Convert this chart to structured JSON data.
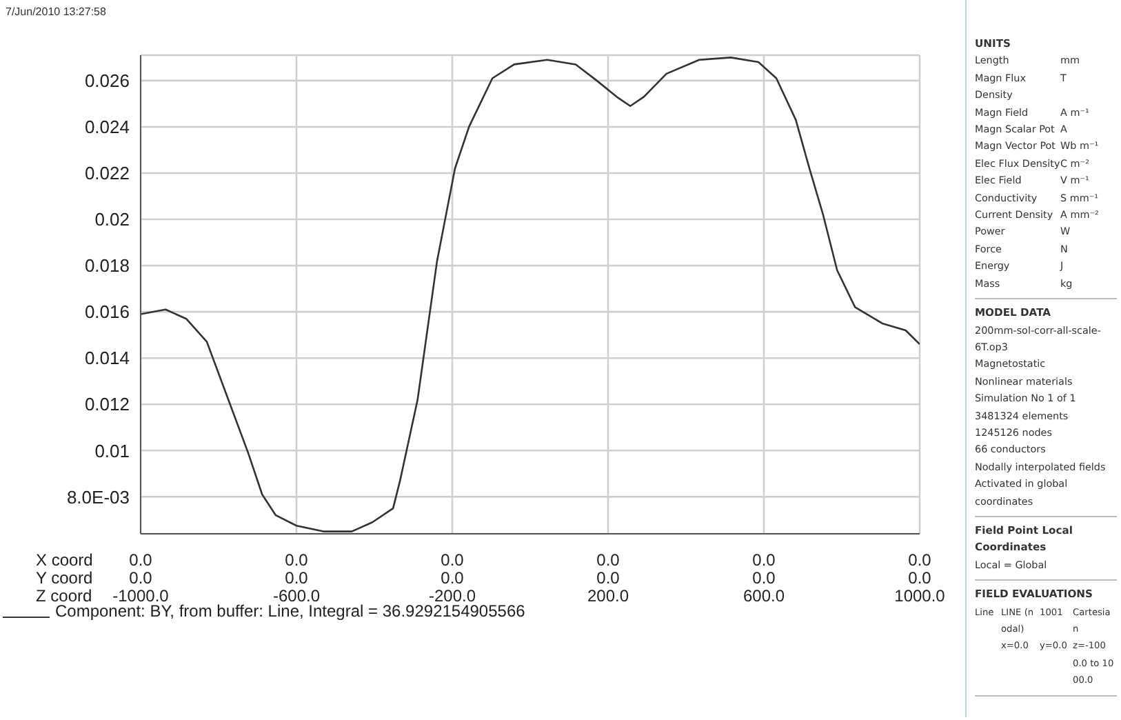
{
  "chart_data": {
    "type": "line",
    "x": [
      -1000,
      -936,
      -883,
      -830,
      -777,
      -724,
      -688,
      -653,
      -600,
      -529,
      -458,
      -405,
      -352,
      -334,
      -289,
      -239,
      -193,
      -157,
      -97,
      -41,
      44,
      117,
      171,
      222,
      257,
      292,
      350,
      434,
      515,
      586,
      632,
      682,
      717,
      752,
      788,
      834,
      904,
      964,
      1000
    ],
    "series": [
      {
        "name": "Component: BY, from buffer: Line, Integral = 36.9292154905566",
        "color": "#333333",
        "values": [
          0.0159,
          0.0161,
          0.0157,
          0.0147,
          0.0123,
          0.0099,
          0.0081,
          0.0072,
          0.00675,
          0.0065,
          0.0065,
          0.0069,
          0.0075,
          0.0087,
          0.0122,
          0.0182,
          0.0222,
          0.024,
          0.0261,
          0.0267,
          0.0269,
          0.0267,
          0.026,
          0.0253,
          0.0249,
          0.0253,
          0.0263,
          0.0269,
          0.027,
          0.0268,
          0.0261,
          0.0243,
          0.0222,
          0.0202,
          0.0178,
          0.0162,
          0.0155,
          0.0152,
          0.0146
        ]
      }
    ],
    "xlim": [
      -1000,
      1000
    ],
    "xticks": [
      {
        "value": -1000,
        "label": "-1000.0"
      },
      {
        "value": -600,
        "label": "-600.0"
      },
      {
        "value": -200,
        "label": "-200.0"
      },
      {
        "value": 200,
        "label": "200.0"
      },
      {
        "value": 600,
        "label": "600.0"
      },
      {
        "value": 1000,
        "label": "1000.0"
      }
    ],
    "ylim": [
      0.0064,
      0.0271
    ],
    "yticks": [
      {
        "value": 0.008,
        "label": "8.0E-03"
      },
      0.01,
      0.012,
      0.014,
      0.016,
      0.018,
      0.02,
      0.022,
      0.024,
      0.026
    ],
    "grid": true,
    "legend": "bottom left",
    "marker": "none",
    "line_style": "solid",
    "annotations": [
      "7/Jun/2010 13:27:58",
      "X coord",
      "Y coord",
      "Z coord",
      "UNITS",
      "Length",
      "mm",
      "Magn Flux Density",
      "T",
      "Magn Field",
      "A m⁻¹",
      "Magn Scalar Pot",
      "A",
      "Magn Vector Pot",
      "Wb m⁻¹",
      "Elec Flux Density",
      "C m⁻²",
      "Elec Field",
      "V m⁻¹",
      "Conductivity",
      "S mm⁻¹",
      "Current Density",
      "A mm⁻²",
      "Power",
      "W",
      "Force",
      "N",
      "Energy",
      "J",
      "Mass",
      "kg",
      "MODEL DATA",
      "200mm-sol-corr-all-scale-6T.op3",
      "Magnetostatic",
      "Nonlinear materials",
      "Simulation No 1 of 1",
      "3481324 elements",
      "1245126 nodes",
      "66 conductors",
      "Nodally interpolated fields",
      "Activated in global coordinates",
      "Field Point Local Coordinates",
      "Local = Global",
      "FIELD EVALUATIONS",
      "Line",
      "LINE (nodal)",
      "1001",
      "Cartesian",
      "x=0.0",
      "y=0.0",
      "z=-1000.0 to 1000.0",
      "0.0",
      "0.0",
      "0.0",
      "0.0",
      "0.0",
      "0.0",
      "0.0",
      "0.0",
      "0.0",
      "0.0",
      "0.0",
      "0.0"
    ]
  }
}
